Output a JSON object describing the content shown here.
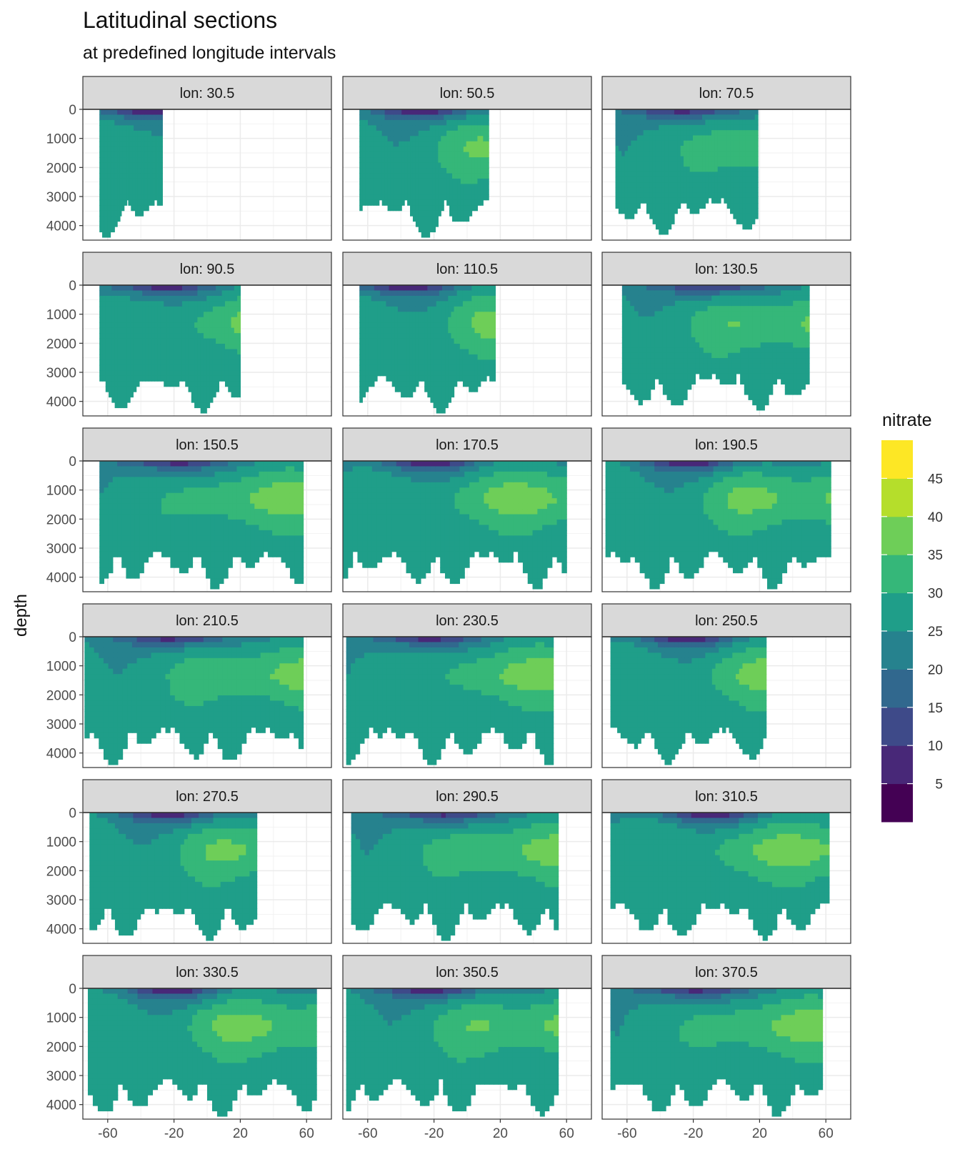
{
  "chart_data": {
    "type": "contour",
    "title": "Latitudinal sections",
    "subtitle": "at predefined longitude intervals",
    "xlabel": "",
    "ylabel": "depth",
    "xlim": [
      -75,
      75
    ],
    "ylim": [
      4500,
      0
    ],
    "xticks": [
      -60,
      -20,
      20,
      60
    ],
    "yticks": [
      0,
      1000,
      2000,
      3000,
      4000
    ],
    "facet_label_prefix": "lon: ",
    "facets": [
      {
        "lon": "30.5",
        "lat_range": [
          -65,
          -27
        ],
        "max_depth": 4400,
        "surface_low_lat": -37
      },
      {
        "lon": "50.5",
        "lat_range": [
          -65,
          13
        ],
        "max_depth": 4400,
        "surface_low_lat": -25
      },
      {
        "lon": "70.5",
        "lat_range": [
          -67,
          19
        ],
        "max_depth": 4300,
        "surface_low_lat": -25
      },
      {
        "lon": "90.5",
        "lat_range": [
          -65,
          20
        ],
        "max_depth": 4400,
        "surface_low_lat": -28
      },
      {
        "lon": "110.5",
        "lat_range": [
          -65,
          17
        ],
        "max_depth": 4400,
        "surface_low_lat": -38
      },
      {
        "lon": "130.5",
        "lat_range": [
          -63,
          50
        ],
        "max_depth": 4300,
        "surface_low_lat": -10
      },
      {
        "lon": "150.5",
        "lat_range": [
          -65,
          58
        ],
        "max_depth": 4400,
        "surface_low_lat": -20
      },
      {
        "lon": "170.5",
        "lat_range": [
          -75,
          60
        ],
        "max_depth": 4400,
        "surface_low_lat": -25
      },
      {
        "lon": "190.5",
        "lat_range": [
          -73,
          63
        ],
        "max_depth": 4400,
        "surface_low_lat": -20
      },
      {
        "lon": "210.5",
        "lat_range": [
          -74,
          58
        ],
        "max_depth": 4400,
        "surface_low_lat": -20
      },
      {
        "lon": "230.5",
        "lat_range": [
          -73,
          52
        ],
        "max_depth": 4400,
        "surface_low_lat": -25
      },
      {
        "lon": "250.5",
        "lat_range": [
          -70,
          24
        ],
        "max_depth": 4400,
        "surface_low_lat": -25
      },
      {
        "lon": "270.5",
        "lat_range": [
          -71,
          30
        ],
        "max_depth": 4400,
        "surface_low_lat": -20
      },
      {
        "lon": "290.5",
        "lat_range": [
          -70,
          55
        ],
        "max_depth": 4400,
        "surface_low_lat": -15
      },
      {
        "lon": "310.5",
        "lat_range": [
          -70,
          62
        ],
        "max_depth": 4400,
        "surface_low_lat": -10
      },
      {
        "lon": "330.5",
        "lat_range": [
          -72,
          66
        ],
        "max_depth": 4400,
        "surface_low_lat": -20
      },
      {
        "lon": "350.5",
        "lat_range": [
          -73,
          55
        ],
        "max_depth": 4400,
        "surface_low_lat": -20
      },
      {
        "lon": "370.5",
        "lat_range": [
          -70,
          58
        ],
        "max_depth": 4400,
        "surface_low_lat": -20
      }
    ],
    "legend": {
      "title": "nitrate",
      "position": "right",
      "breaks": [
        5,
        10,
        15,
        20,
        25,
        30,
        35,
        40,
        45
      ],
      "colors": [
        "#440154",
        "#482878",
        "#3e4a89",
        "#31688e",
        "#26828e",
        "#1f9e89",
        "#35b779",
        "#6ece58",
        "#b5de2b",
        "#fde725"
      ]
    }
  }
}
